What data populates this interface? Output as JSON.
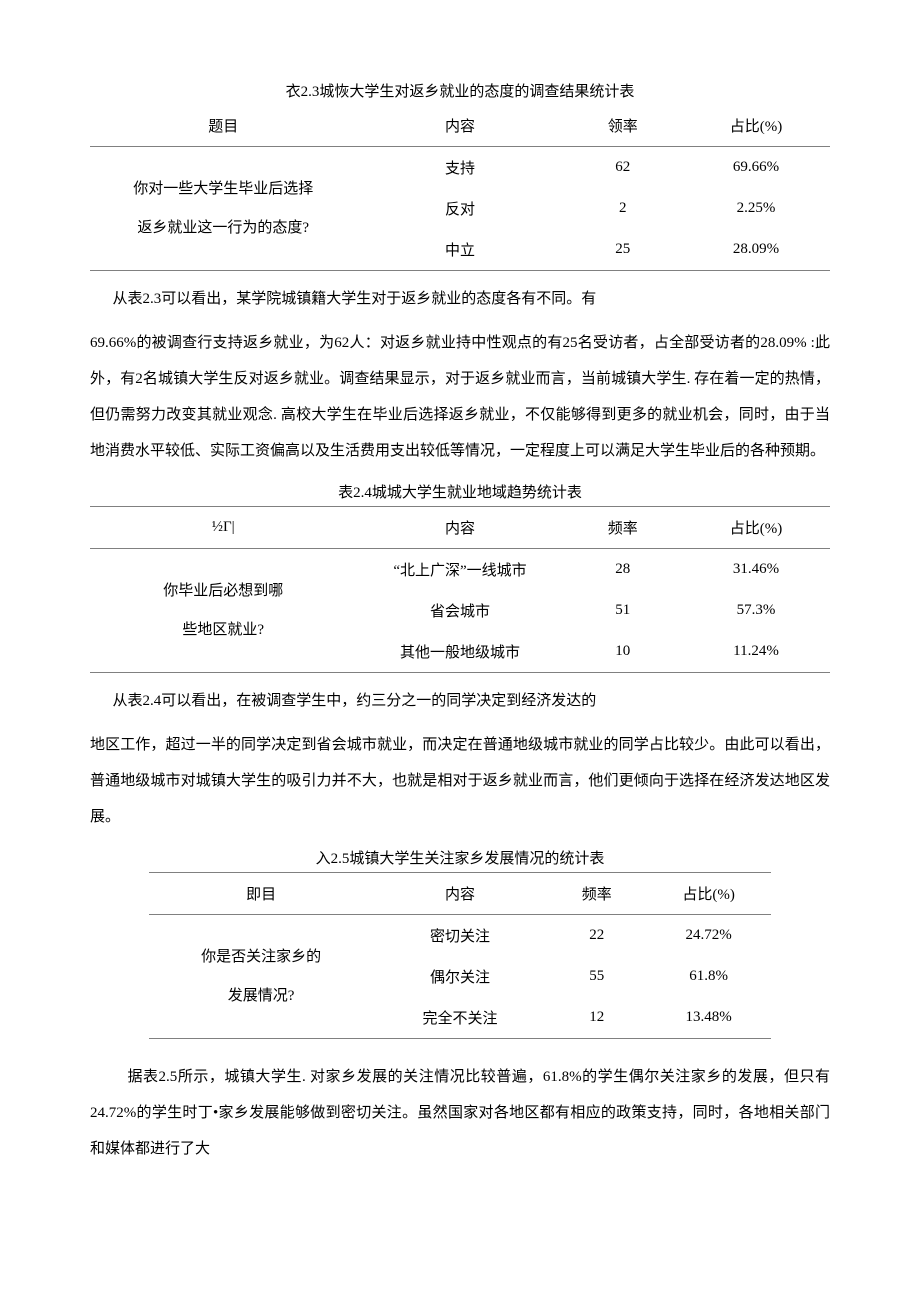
{
  "table23": {
    "caption": "衣2.3城恢大学生对返乡就业的态度的调查结果统计表",
    "headers": [
      "题目",
      "内容",
      "领率",
      "占比(%)"
    ],
    "question": "你对一些大学生毕业后选择\n返乡就业这一行为的态度?",
    "rows": [
      {
        "content": "支持",
        "freq": "62",
        "pct": "69.66%"
      },
      {
        "content": "反对",
        "freq": "2",
        "pct": "2.25%"
      },
      {
        "content": "中立",
        "freq": "25",
        "pct": "28.09%"
      }
    ]
  },
  "para23a": "从表2.3可以看出，某学院城镇籍大学生对于返乡就业的态度各有不同。有",
  "para23b": "69.66%的被调查行支持返乡就业，为62人：对返乡就业持中性观点的有25名受访者，占全部受访者的28.09% :此外，有2名城镇大学生反对返乡就业。调查结果显示，对于返乡就业而言，当前城镇大学生. 存在着一定的热情，但仍需努力改变其就业观念. 高校大学生在毕业后选择返乡就业，不仅能够得到更多的就业机会，同时，由于当地消费水平较低、实际工资偏高以及生活费用支出较低等情况，一定程度上可以满足大学生毕业后的各种预期。",
  "table24": {
    "caption": "表2.4城城大学生就业地域趋势统计表",
    "headers": [
      "½Γ|",
      "内容",
      "频率",
      "占比(%)"
    ],
    "question": "你毕业后必想到哪\n些地区就业?",
    "rows": [
      {
        "content": "“北上广深”一线城市",
        "freq": "28",
        "pct": "31.46%"
      },
      {
        "content": "省会城市",
        "freq": "51",
        "pct": "57.3%"
      },
      {
        "content": "其他一般地级城市",
        "freq": "10",
        "pct": "11.24%"
      }
    ]
  },
  "para24a": "从表2.4可以看出，在被调查学生中，约三分之一的同学决定到经济发达的",
  "para24b": "地区工作，超过一半的同学决定到省会城市就业，而决定在普通地级城市就业的同学占比较少。由此可以看出，普通地级城市对城镇大学生的吸引力并不大，也就是相对于返乡就业而言，他们更倾向于选择在经济发达地区发展。",
  "table25": {
    "caption": "入2.5城镇大学生关注家乡发展情况的统计表",
    "headers": [
      "即目",
      "内容",
      "频率",
      "占比(%)"
    ],
    "question": "你是否关注家乡的\n发展情况?",
    "rows": [
      {
        "content": "密切关注",
        "freq": "22",
        "pct": "24.72%"
      },
      {
        "content": "偶尔关注",
        "freq": "55",
        "pct": "61.8%"
      },
      {
        "content": "完全不关注",
        "freq": "12",
        "pct": "13.48%"
      }
    ]
  },
  "para25": "据表2.5所示，城镇大学生. 对家乡发展的关注情况比较普遍，61.8%的学生偶尔关注家乡的发展，但只有24.72%的学生时丁•家乡发展能够做到密切关注。虽然国家对各地区都有相应的政策支持，同时，各地相关部门和媒体都进行了大"
}
